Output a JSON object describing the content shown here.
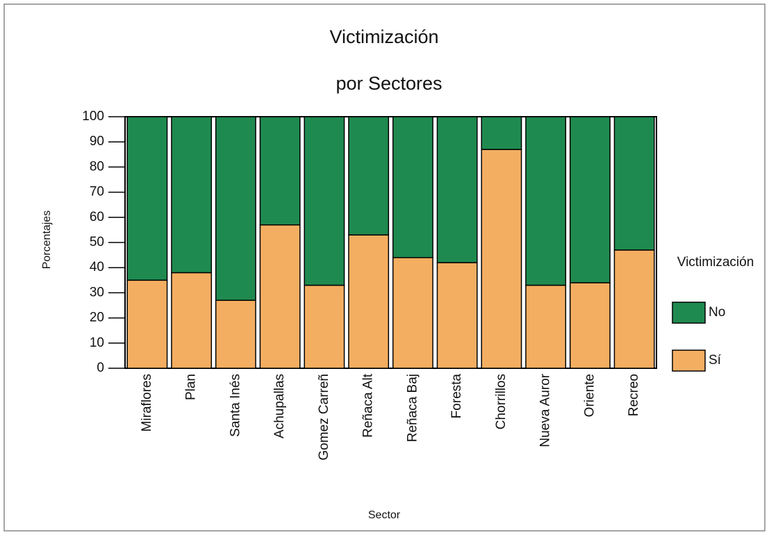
{
  "chart_data": {
    "type": "stacked_bar",
    "title": "Victimización",
    "subtitle": "por Sectores",
    "x_label": "Sector",
    "y_label": "Porcentajes",
    "legend_title": "Victimización",
    "categories": [
      "Miraflores",
      "Plan",
      "Santa Inés",
      "Achupallas",
      "Gomez Carreñ",
      "Reñaca Alt",
      "Reñaca Baj",
      "Foresta",
      "Chorrillos",
      "Nueva Auror",
      "Oriente",
      "Recreo"
    ],
    "series": [
      {
        "name": "Sí",
        "color": "#f4ae62",
        "values": [
          35,
          38,
          27,
          57,
          33,
          53,
          44,
          42,
          87,
          33,
          34,
          47
        ]
      },
      {
        "name": "No",
        "color": "#1f8a50",
        "values": [
          65,
          62,
          73,
          43,
          67,
          47,
          56,
          58,
          13,
          67,
          66,
          53
        ]
      }
    ],
    "ylim": [
      0,
      100
    ],
    "yticks": [
      0,
      10,
      20,
      30,
      40,
      50,
      60,
      70,
      80,
      90,
      100
    ]
  }
}
